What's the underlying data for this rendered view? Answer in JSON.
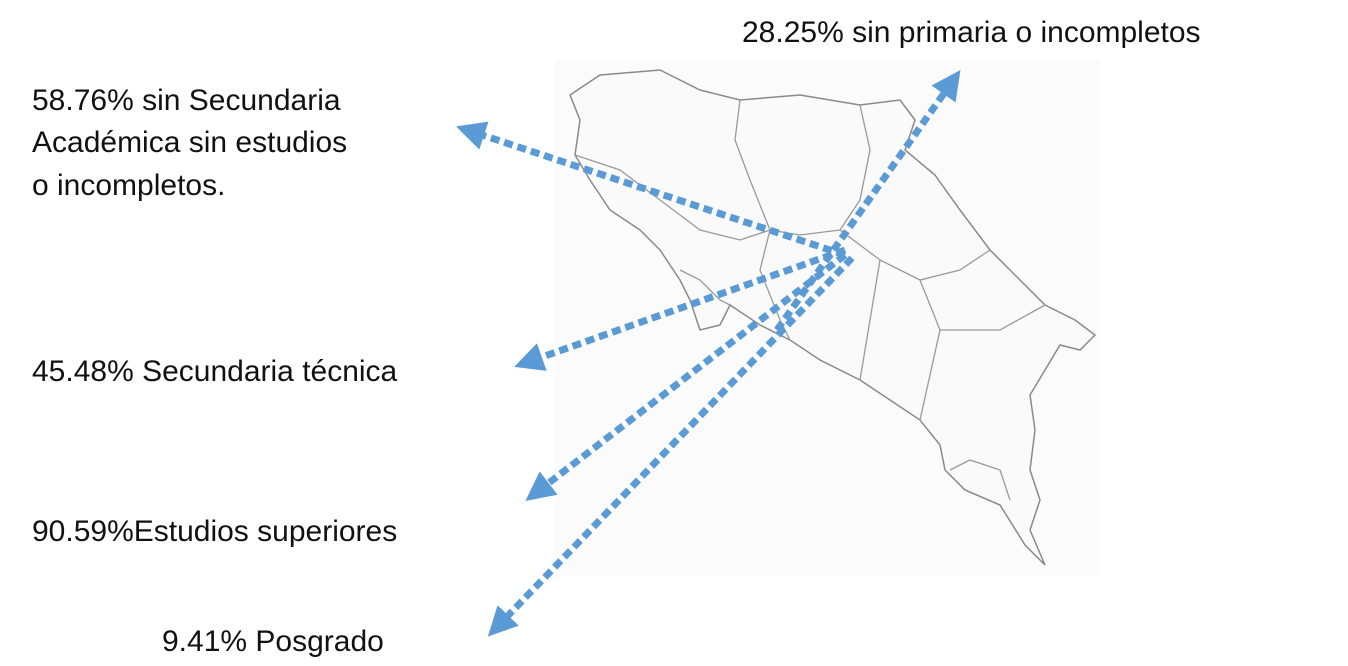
{
  "labels": [
    {
      "lines": [
        "28.25% sin primaria o incompletos"
      ]
    },
    {
      "lines": [
        "58.76% sin Secundaria",
        "Académica sin estudios",
        "o incompletos."
      ]
    },
    {
      "lines": [
        "45.48% Secundaria técnica"
      ]
    },
    {
      "lines": [
        "90.59%Estudios superiores"
      ]
    },
    {
      "lines": [
        "9.41% Posgrado"
      ]
    }
  ]
}
